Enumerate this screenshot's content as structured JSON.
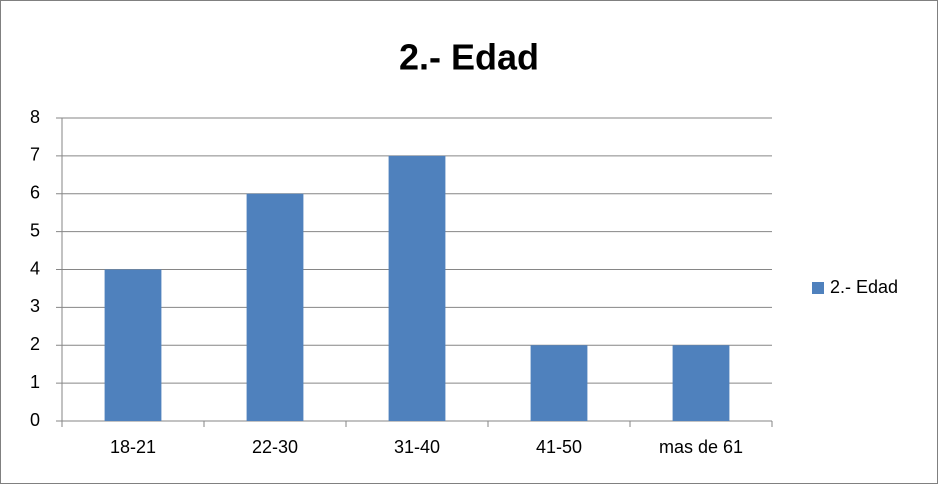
{
  "chart_data": {
    "type": "bar",
    "title": "2.- Edad",
    "categories": [
      "18-21",
      "22-30",
      "31-40",
      "41-50",
      "mas de 61"
    ],
    "series": [
      {
        "name": "2.- Edad",
        "color": "#4f81bd",
        "values": [
          4,
          6,
          7,
          2,
          2
        ]
      }
    ],
    "ylim": [
      0,
      8
    ],
    "yticks": [
      0,
      1,
      2,
      3,
      4,
      5,
      6,
      7,
      8
    ],
    "grid": true,
    "legend": "right"
  }
}
